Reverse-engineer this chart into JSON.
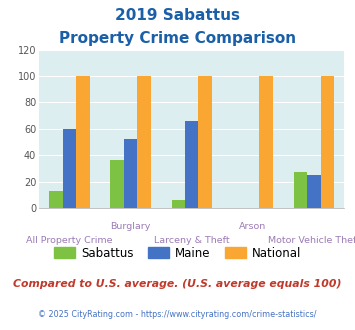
{
  "title_line1": "2019 Sabattus",
  "title_line2": "Property Crime Comparison",
  "categories": [
    "All Property Crime",
    "Burglary",
    "Larceny & Theft",
    "Arson",
    "Motor Vehicle Theft"
  ],
  "label_row1": [
    "",
    "Burglary",
    "",
    "Arson",
    ""
  ],
  "label_row2": [
    "All Property Crime",
    "",
    "Larceny & Theft",
    "",
    "Motor Vehicle Theft"
  ],
  "sabattus": [
    13,
    36,
    6,
    0,
    27
  ],
  "maine": [
    60,
    52,
    66,
    0,
    25
  ],
  "national": [
    100,
    100,
    100,
    100,
    100
  ],
  "sabattus_color": "#7dc242",
  "maine_color": "#4472c4",
  "national_color": "#faa632",
  "bg_color": "#ddeef0",
  "ylim": [
    0,
    120
  ],
  "yticks": [
    0,
    20,
    40,
    60,
    80,
    100,
    120
  ],
  "legend_labels": [
    "Sabattus",
    "Maine",
    "National"
  ],
  "footer_text": "Compared to U.S. average. (U.S. average equals 100)",
  "copyright_text": "© 2025 CityRating.com - https://www.cityrating.com/crime-statistics/",
  "title_color": "#1a5fa8",
  "footer_color": "#c0392b",
  "copyright_color": "#4472c4",
  "label_color": "#9b7bb5"
}
